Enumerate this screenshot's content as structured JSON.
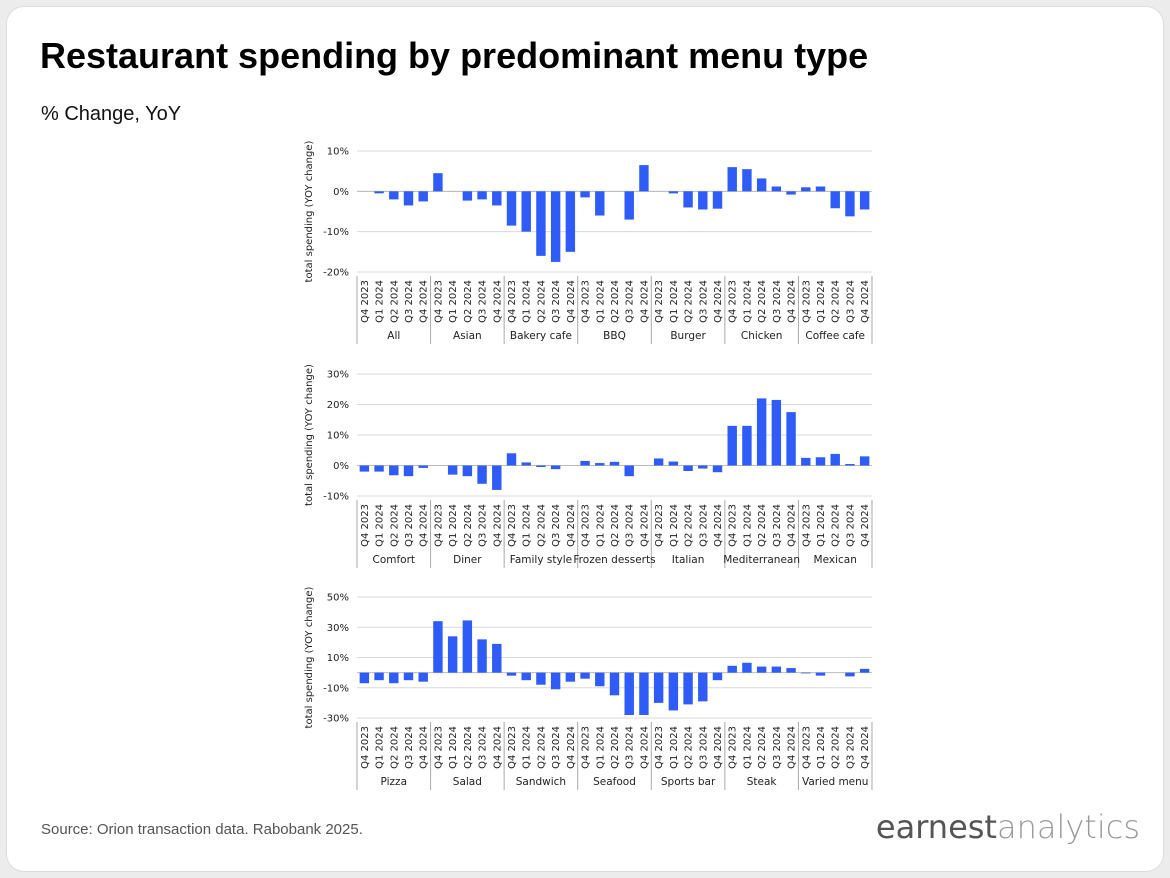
{
  "title": "Restaurant spending by predominant menu type",
  "subtitle": "% Change, YoY",
  "source": "Source: Orion transaction data. Rabobank 2025.",
  "logo": {
    "first": "earnest",
    "second": "analytics"
  },
  "chart_data": [
    {
      "type": "bar",
      "ylabel": "total spending (YOY change)",
      "color": "#2f5cf6",
      "grid": true,
      "ylim": [
        -20,
        10
      ],
      "yticks": [
        {
          "value": -20,
          "label": "-20%"
        },
        {
          "value": -10,
          "label": "-10%"
        },
        {
          "value": 0,
          "label": "0%"
        },
        {
          "value": 10,
          "label": "10%"
        }
      ],
      "periods": [
        "Q4 2023",
        "Q1 2024",
        "Q2 2024",
        "Q3 2024",
        "Q4 2024"
      ],
      "groups": [
        {
          "name": "All",
          "values": [
            0,
            -0.5,
            -2,
            -3.5,
            -2.5
          ]
        },
        {
          "name": "Asian",
          "values": [
            4.5,
            0,
            -2.3,
            -2,
            -3.5
          ]
        },
        {
          "name": "Bakery cafe",
          "values": [
            -8.5,
            -10,
            -16,
            -17.5,
            -15
          ]
        },
        {
          "name": "BBQ",
          "values": [
            -1.5,
            -6,
            0,
            -7,
            6.5
          ]
        },
        {
          "name": "Burger",
          "values": [
            0,
            -0.5,
            -4,
            -4.5,
            -4.3
          ]
        },
        {
          "name": "Chicken",
          "values": [
            6,
            5.5,
            3.2,
            1.2,
            -0.8
          ]
        },
        {
          "name": "Coffee cafe",
          "values": [
            1,
            1.2,
            -4.2,
            -6.2,
            -4.5
          ]
        }
      ]
    },
    {
      "type": "bar",
      "ylabel": "total spending (YOY change)",
      "color": "#2f5cf6",
      "grid": true,
      "ylim": [
        -10,
        30
      ],
      "yticks": [
        {
          "value": -10,
          "label": "-10%"
        },
        {
          "value": 0,
          "label": "0%"
        },
        {
          "value": 10,
          "label": "10%"
        },
        {
          "value": 20,
          "label": "20%"
        },
        {
          "value": 30,
          "label": "30%"
        }
      ],
      "periods": [
        "Q4 2023",
        "Q1 2024",
        "Q2 2024",
        "Q3 2024",
        "Q4 2024"
      ],
      "groups": [
        {
          "name": "Comfort",
          "values": [
            -2,
            -2,
            -3.2,
            -3.5,
            -0.8
          ]
        },
        {
          "name": "Diner",
          "values": [
            0,
            -3,
            -3.5,
            -6,
            -8
          ]
        },
        {
          "name": "Family style",
          "values": [
            4,
            1,
            -0.5,
            -1.2,
            0
          ]
        },
        {
          "name": "Frozen desserts",
          "values": [
            1.5,
            0.8,
            1.2,
            -3.5,
            0
          ]
        },
        {
          "name": "Italian",
          "values": [
            2.3,
            1.3,
            -1.8,
            -1,
            -2.2
          ]
        },
        {
          "name": "Mediterranean",
          "values": [
            13,
            13,
            22,
            21.5,
            17.5
          ]
        },
        {
          "name": "Mexican",
          "values": [
            2.5,
            2.7,
            3.8,
            0.5,
            3
          ]
        }
      ]
    },
    {
      "type": "bar",
      "ylabel": "total spending (YOY change)",
      "color": "#2f5cf6",
      "grid": true,
      "ylim": [
        -30,
        50
      ],
      "yticks": [
        {
          "value": -30,
          "label": "-30%"
        },
        {
          "value": -10,
          "label": "-10%"
        },
        {
          "value": 10,
          "label": "10%"
        },
        {
          "value": 30,
          "label": "30%"
        },
        {
          "value": 50,
          "label": "50%"
        }
      ],
      "periods": [
        "Q4 2023",
        "Q1 2024",
        "Q2 2024",
        "Q3 2024",
        "Q4 2024"
      ],
      "groups": [
        {
          "name": "Pizza",
          "values": [
            -7,
            -5,
            -7,
            -5,
            -6
          ]
        },
        {
          "name": "Salad",
          "values": [
            34,
            24,
            34.5,
            22,
            19
          ]
        },
        {
          "name": "Sandwich",
          "values": [
            -2,
            -5,
            -8,
            -11,
            -6
          ]
        },
        {
          "name": "Seafood",
          "values": [
            -4,
            -9,
            -15,
            -28,
            -28
          ]
        },
        {
          "name": "Sports bar",
          "values": [
            -20,
            -25,
            -21,
            -19,
            -5
          ]
        },
        {
          "name": "Steak",
          "values": [
            4.5,
            6.5,
            4,
            4,
            3
          ]
        },
        {
          "name": "Varied menu",
          "values": [
            -0.5,
            -2,
            0,
            -2.5,
            2.5
          ]
        }
      ]
    }
  ]
}
